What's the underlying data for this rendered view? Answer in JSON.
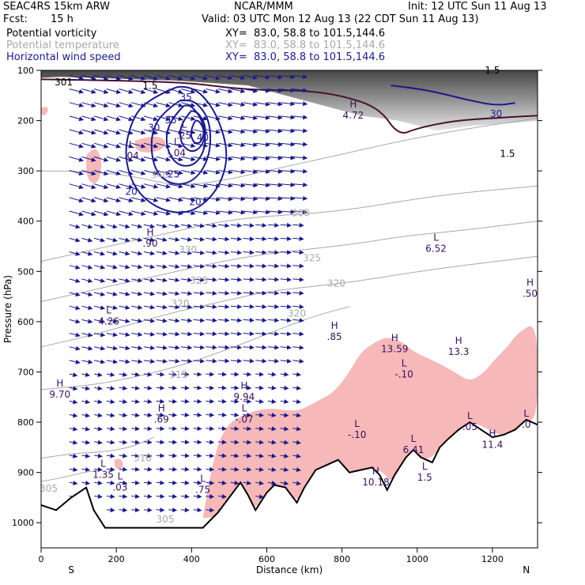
{
  "header": {
    "model": "SEAC4RS 15km ARW",
    "center": "NCAR/MMM",
    "init": "Init: 12 UTC Sun 11 Aug 13",
    "fcst_label": "Fcst:",
    "fcst_value": "15 h",
    "valid": "Valid: 03 UTC Mon 12 Aug 13 (22 CDT Sun 11 Aug 13)",
    "fields": [
      {
        "name": "Potential vorticity",
        "xy": "XY=  83.0, 58.8 to 101.5,144.6",
        "color": "#000000"
      },
      {
        "name": "Potential temperature",
        "xy": "XY=  83.0, 58.8 to 101.5,144.6",
        "color": "#a8a8a8"
      },
      {
        "name": "Horizontal wind speed",
        "xy": "XY=  83.0, 58.8 to 101.5,144.6",
        "color": "#1a1a8c"
      }
    ]
  },
  "chart_data": {
    "type": "cross-section",
    "xlabel": "Distance (km)",
    "ylabel": "Pressure (hPa)",
    "xlim": [
      0,
      1320
    ],
    "ylim": [
      1050,
      100
    ],
    "x_ticks": [
      0,
      200,
      400,
      600,
      800,
      1000,
      1200
    ],
    "y_ticks": [
      100,
      200,
      300,
      400,
      500,
      600,
      700,
      800,
      900,
      1000
    ],
    "end_labels": {
      "left": "S",
      "right": "N"
    },
    "colors": {
      "pv_positive": "#f6b8b8",
      "wind_contour": "#1a1a8c",
      "theta_contour": "#a8a8a8",
      "terrain": "#000000",
      "vectors": "#1a1a8c"
    },
    "terrain": [
      [
        0,
        965
      ],
      [
        40,
        975
      ],
      [
        80,
        950
      ],
      [
        120,
        930
      ],
      [
        140,
        975
      ],
      [
        170,
        1010
      ],
      [
        200,
        1010
      ],
      [
        300,
        1010
      ],
      [
        400,
        1010
      ],
      [
        430,
        1010
      ],
      [
        470,
        980
      ],
      [
        500,
        950
      ],
      [
        530,
        920
      ],
      [
        550,
        945
      ],
      [
        570,
        975
      ],
      [
        600,
        940
      ],
      [
        620,
        925
      ],
      [
        650,
        930
      ],
      [
        680,
        960
      ],
      [
        700,
        930
      ],
      [
        730,
        895
      ],
      [
        760,
        885
      ],
      [
        790,
        875
      ],
      [
        820,
        900
      ],
      [
        850,
        895
      ],
      [
        880,
        890
      ],
      [
        900,
        905
      ],
      [
        920,
        935
      ],
      [
        940,
        905
      ],
      [
        970,
        870
      ],
      [
        990,
        855
      ],
      [
        1010,
        870
      ],
      [
        1040,
        880
      ],
      [
        1060,
        850
      ],
      [
        1080,
        835
      ],
      [
        1110,
        815
      ],
      [
        1140,
        800
      ],
      [
        1170,
        815
      ],
      [
        1200,
        830
      ],
      [
        1230,
        825
      ],
      [
        1260,
        815
      ],
      [
        1290,
        795
      ],
      [
        1320,
        805
      ]
    ],
    "wind_speed_contours": [
      {
        "level": 20,
        "points": [
          [
            340,
            140
          ],
          [
            280,
            160
          ],
          [
            240,
            200
          ],
          [
            220,
            270
          ],
          [
            250,
            340
          ],
          [
            320,
            380
          ],
          [
            400,
            385
          ],
          [
            470,
            340
          ],
          [
            500,
            270
          ],
          [
            470,
            190
          ],
          [
            420,
            140
          ],
          [
            370,
            130
          ],
          [
            340,
            140
          ]
        ]
      },
      {
        "level": 25,
        "points": [
          [
            370,
            160
          ],
          [
            320,
            185
          ],
          [
            290,
            230
          ],
          [
            300,
            300
          ],
          [
            350,
            330
          ],
          [
            410,
            320
          ],
          [
            450,
            270
          ],
          [
            450,
            200
          ],
          [
            410,
            160
          ],
          [
            370,
            160
          ]
        ]
      },
      {
        "level": 30,
        "points": [
          [
            380,
            170
          ],
          [
            340,
            200
          ],
          [
            330,
            250
          ],
          [
            360,
            290
          ],
          [
            410,
            290
          ],
          [
            440,
            250
          ],
          [
            430,
            200
          ],
          [
            400,
            170
          ],
          [
            380,
            170
          ]
        ]
      },
      {
        "level": 35,
        "points": [
          [
            400,
            180
          ],
          [
            370,
            205
          ],
          [
            370,
            245
          ],
          [
            400,
            265
          ],
          [
            430,
            250
          ],
          [
            440,
            215
          ],
          [
            420,
            185
          ],
          [
            400,
            180
          ]
        ]
      },
      {
        "level": 40,
        "points": [
          [
            410,
            200
          ],
          [
            395,
            220
          ],
          [
            405,
            245
          ],
          [
            425,
            245
          ],
          [
            435,
            220
          ],
          [
            420,
            200
          ],
          [
            410,
            200
          ]
        ]
      },
      {
        "level": 30,
        "points": [
          [
            930,
            130
          ],
          [
            990,
            135
          ],
          [
            1060,
            145
          ],
          [
            1140,
            160
          ],
          [
            1210,
            170
          ],
          [
            1260,
            165
          ]
        ]
      }
    ],
    "wind_contour_labels": [
      {
        "text": "35",
        "x": 385,
        "y": 160
      },
      {
        "text": "35",
        "x": 345,
        "y": 205
      },
      {
        "text": "30",
        "x": 300,
        "y": 220
      },
      {
        "text": "40",
        "x": 430,
        "y": 240
      },
      {
        "text": "25",
        "x": 352,
        "y": 313
      },
      {
        "text": "20",
        "x": 240,
        "y": 348
      },
      {
        "text": "20",
        "x": 410,
        "y": 368
      },
      {
        "text": "30",
        "x": 1210,
        "y": 193
      }
    ],
    "theta_contours": [
      {
        "level": 305,
        "points": [
          [
            0,
            918
          ],
          [
            60,
            910
          ],
          [
            110,
            900
          ],
          [
            160,
            895
          ]
        ]
      },
      {
        "level": 310,
        "points": [
          [
            0,
            872
          ],
          [
            80,
            862
          ],
          [
            160,
            860
          ],
          [
            240,
            850
          ],
          [
            300,
            830
          ]
        ]
      },
      {
        "level": 315,
        "points": [
          [
            0,
            735
          ],
          [
            120,
            728
          ],
          [
            240,
            712
          ],
          [
            360,
            690
          ],
          [
            480,
            660
          ],
          [
            600,
            625
          ],
          [
            720,
            590
          ],
          [
            820,
            570
          ]
        ]
      },
      {
        "level": 320,
        "points": [
          [
            0,
            650
          ],
          [
            120,
            630
          ],
          [
            240,
            605
          ],
          [
            360,
            580
          ],
          [
            480,
            560
          ],
          [
            600,
            540
          ],
          [
            720,
            530
          ],
          [
            840,
            520
          ],
          [
            960,
            505
          ],
          [
            1100,
            490
          ],
          [
            1320,
            470
          ]
        ]
      },
      {
        "level": 325,
        "points": [
          [
            0,
            560
          ],
          [
            120,
            540
          ],
          [
            240,
            520
          ],
          [
            360,
            500
          ],
          [
            480,
            480
          ],
          [
            600,
            465
          ],
          [
            720,
            455
          ],
          [
            840,
            445
          ],
          [
            960,
            430
          ],
          [
            1100,
            420
          ],
          [
            1320,
            400
          ]
        ]
      },
      {
        "level": 330,
        "points": [
          [
            0,
            480
          ],
          [
            120,
            460
          ],
          [
            240,
            440
          ],
          [
            360,
            420
          ],
          [
            480,
            400
          ],
          [
            600,
            390
          ],
          [
            720,
            385
          ],
          [
            840,
            375
          ],
          [
            960,
            360
          ],
          [
            1100,
            345
          ],
          [
            1320,
            330
          ]
        ]
      },
      {
        "level": 340,
        "points": [
          [
            0,
            300
          ],
          [
            120,
            300
          ],
          [
            240,
            310
          ],
          [
            360,
            330
          ],
          [
            480,
            320
          ],
          [
            600,
            300
          ],
          [
            720,
            280
          ],
          [
            840,
            260
          ],
          [
            960,
            240
          ],
          [
            1100,
            220
          ],
          [
            1320,
            195
          ]
        ]
      }
    ],
    "theta_labels": [
      {
        "text": "305",
        "x": 20,
        "y": 938
      },
      {
        "text": "310",
        "x": 270,
        "y": 878
      },
      {
        "text": "315",
        "x": 365,
        "y": 712
      },
      {
        "text": "320",
        "x": 680,
        "y": 590
      },
      {
        "text": "325",
        "x": 420,
        "y": 525
      },
      {
        "text": "330",
        "x": 390,
        "y": 463
      },
      {
        "text": "340",
        "x": 315,
        "y": 315
      },
      {
        "text": "305",
        "x": 330,
        "y": 1000
      },
      {
        "text": "320",
        "x": 370,
        "y": 570
      },
      {
        "text": "325",
        "x": 720,
        "y": 480
      },
      {
        "text": "320",
        "x": 785,
        "y": 530
      },
      {
        "text": "300",
        "x": 690,
        "y": 390
      }
    ],
    "pv_labels": [
      {
        "text": "301",
        "x": 60,
        "y": 130
      },
      {
        "text": "1.5",
        "x": 290,
        "y": 137
      },
      {
        "text": "1.5",
        "x": 1200,
        "y": 106
      },
      {
        "text": "1.5",
        "x": 1240,
        "y": 272
      }
    ],
    "pv_positive_regions": [
      [
        [
          430,
          990
        ],
        [
          450,
          900
        ],
        [
          480,
          820
        ],
        [
          520,
          790
        ],
        [
          600,
          770
        ],
        [
          680,
          780
        ],
        [
          730,
          760
        ],
        [
          780,
          740
        ],
        [
          820,
          700
        ],
        [
          850,
          660
        ],
        [
          890,
          640
        ],
        [
          920,
          630
        ],
        [
          960,
          640
        ],
        [
          990,
          660
        ],
        [
          1050,
          680
        ],
        [
          1100,
          700
        ],
        [
          1140,
          720
        ],
        [
          1180,
          700
        ],
        [
          1200,
          680
        ],
        [
          1240,
          650
        ],
        [
          1270,
          620
        ],
        [
          1320,
          600
        ],
        [
          1320,
          780
        ],
        [
          1300,
          800
        ],
        [
          1280,
          820
        ],
        [
          1250,
          830
        ],
        [
          1220,
          825
        ],
        [
          1190,
          815
        ],
        [
          1150,
          800
        ],
        [
          1120,
          820
        ],
        [
          1100,
          830
        ],
        [
          1070,
          845
        ],
        [
          1040,
          870
        ],
        [
          1010,
          875
        ],
        [
          980,
          860
        ],
        [
          950,
          890
        ],
        [
          930,
          920
        ],
        [
          910,
          900
        ],
        [
          880,
          890
        ],
        [
          850,
          895
        ],
        [
          820,
          900
        ],
        [
          790,
          875
        ],
        [
          760,
          885
        ],
        [
          730,
          895
        ],
        [
          700,
          930
        ],
        [
          680,
          960
        ],
        [
          650,
          930
        ],
        [
          620,
          925
        ],
        [
          600,
          940
        ],
        [
          570,
          975
        ],
        [
          540,
          945
        ],
        [
          510,
          935
        ],
        [
          480,
          975
        ],
        [
          460,
          990
        ]
      ],
      [
        [
          120,
          270
        ],
        [
          140,
          250
        ],
        [
          160,
          270
        ],
        [
          160,
          310
        ],
        [
          140,
          330
        ],
        [
          120,
          310
        ]
      ],
      [
        [
          250,
          240
        ],
        [
          290,
          230
        ],
        [
          330,
          235
        ],
        [
          330,
          255
        ],
        [
          290,
          265
        ],
        [
          250,
          260
        ]
      ],
      [
        [
          195,
          875
        ],
        [
          210,
          870
        ],
        [
          220,
          885
        ],
        [
          210,
          895
        ],
        [
          195,
          890
        ]
      ],
      [
        [
          0,
          175
        ],
        [
          15,
          170
        ],
        [
          20,
          180
        ],
        [
          10,
          190
        ],
        [
          0,
          188
        ]
      ]
    ],
    "pv_shaded_band": [
      [
        0,
        100
      ],
      [
        1320,
        100
      ],
      [
        1320,
        200
      ],
      [
        1250,
        205
      ],
      [
        1150,
        210
      ],
      [
        1050,
        220
      ],
      [
        950,
        200
      ],
      [
        850,
        190
      ],
      [
        750,
        170
      ],
      [
        650,
        150
      ],
      [
        550,
        130
      ],
      [
        450,
        125
      ],
      [
        350,
        120
      ],
      [
        250,
        118
      ],
      [
        150,
        115
      ],
      [
        50,
        113
      ],
      [
        0,
        115
      ]
    ],
    "extrema": [
      {
        "kind": "L",
        "value": ".25",
        "x": 380,
        "y": 225
      },
      {
        "kind": "L",
        "value": "-.04",
        "x": 360,
        "y": 260
      },
      {
        "kind": "H",
        "value": "4.72",
        "x": 830,
        "y": 185
      },
      {
        "kind": "L",
        "value": ".04",
        "x": 240,
        "y": 265
      },
      {
        "kind": "H",
        "value": ".90",
        "x": 290,
        "y": 440
      },
      {
        "kind": "L",
        "value": "6.52",
        "x": 1050,
        "y": 450
      },
      {
        "kind": "H",
        "value": ".50",
        "x": 1300,
        "y": 540
      },
      {
        "kind": "L",
        "value": "4.26",
        "x": 180,
        "y": 595
      },
      {
        "kind": "H",
        "value": ".85",
        "x": 780,
        "y": 625
      },
      {
        "kind": "H",
        "value": "13.59",
        "x": 940,
        "y": 650
      },
      {
        "kind": "H",
        "value": "13.3",
        "x": 1110,
        "y": 655
      },
      {
        "kind": "L",
        "value": "-.10",
        "x": 965,
        "y": 700
      },
      {
        "kind": "H",
        "value": "9.70",
        "x": 50,
        "y": 740
      },
      {
        "kind": "H",
        "value": "9.94",
        "x": 540,
        "y": 745
      },
      {
        "kind": "H",
        "value": ".69",
        "x": 320,
        "y": 790
      },
      {
        "kind": "L",
        "value": "-.07",
        "x": 540,
        "y": 790
      },
      {
        "kind": "L",
        "value": "-.10",
        "x": 840,
        "y": 820
      },
      {
        "kind": "L",
        "value": "6.41",
        "x": 990,
        "y": 850
      },
      {
        "kind": "L",
        "value": ".05",
        "x": 1140,
        "y": 805
      },
      {
        "kind": "H",
        "value": "11.4",
        "x": 1200,
        "y": 840
      },
      {
        "kind": "L",
        "value": ".0",
        "x": 1290,
        "y": 800
      },
      {
        "kind": "L",
        "value": "1.35",
        "x": 165,
        "y": 900
      },
      {
        "kind": "L",
        "value": ".03",
        "x": 210,
        "y": 925
      },
      {
        "kind": "L",
        "value": "1.5",
        "x": 1020,
        "y": 905
      },
      {
        "kind": "H",
        "value": "10.18",
        "x": 890,
        "y": 915
      },
      {
        "kind": "L",
        "value": ".75",
        "x": 430,
        "y": 930
      }
    ]
  }
}
